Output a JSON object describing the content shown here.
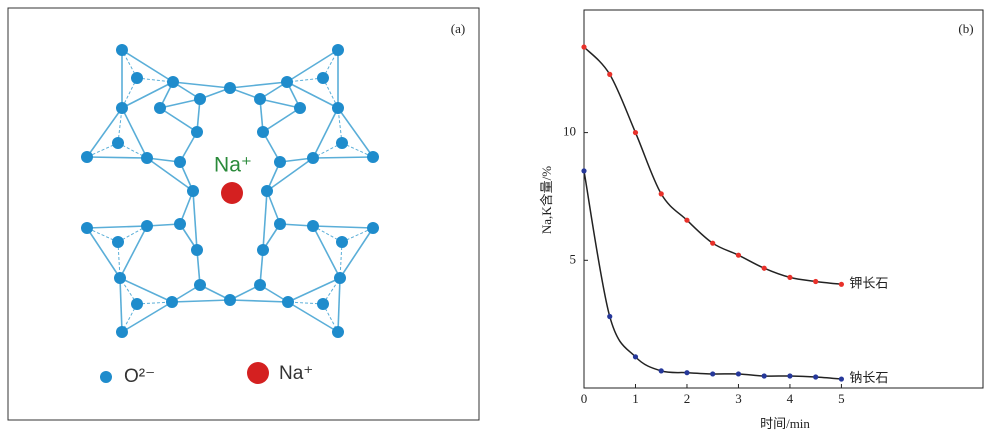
{
  "panel_a": {
    "label": "(a)",
    "center_ion": "Na⁺",
    "legend": [
      "O²⁻",
      "Na⁺"
    ]
  },
  "chart_data": {
    "type": "line",
    "label": "(b)",
    "x_label": "时间/min",
    "y_label": "Na,K含量/%",
    "x": [
      0,
      0.5,
      1,
      1.5,
      2,
      2.5,
      3,
      3.5,
      4,
      4.5,
      5
    ],
    "series": [
      {
        "name": "钾长石",
        "color": "#e8312a",
        "values": [
          13.35,
          12.28,
          10.0,
          7.6,
          6.57,
          5.67,
          5.2,
          4.69,
          4.33,
          4.17,
          4.06
        ]
      },
      {
        "name": "钠长石",
        "color": "#26389a",
        "values": [
          8.5,
          2.8,
          1.22,
          0.67,
          0.6,
          0.55,
          0.55,
          0.47,
          0.47,
          0.43,
          0.35
        ]
      }
    ],
    "xlim": [
      0,
      7.75
    ],
    "ylim": [
      0,
      14.8
    ],
    "xticks": [
      0,
      1,
      2,
      3,
      4,
      5
    ],
    "yticks": [
      5,
      10
    ],
    "line_color": "#222222"
  }
}
